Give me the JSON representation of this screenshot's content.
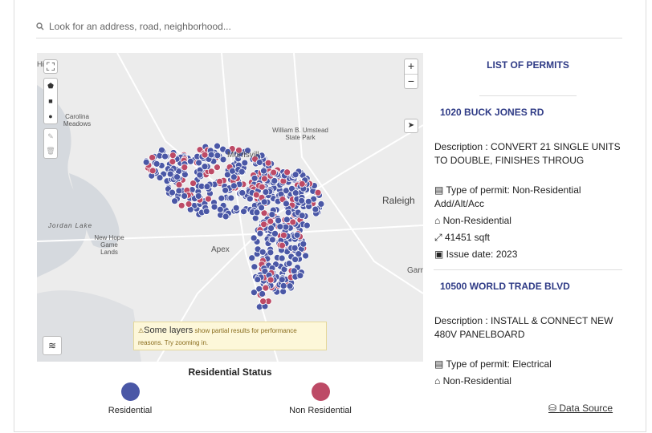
{
  "search": {
    "placeholder": "Look for an address, road, neighborhood..."
  },
  "map": {
    "labels": [
      "Hill",
      "Carolina Meadows",
      "William B. Umstead State Park",
      "Morrisvill",
      "Raleigh",
      "Jordan Lake",
      "New Hope Game Lands",
      "Apex",
      "Garn"
    ],
    "zoom_in": "+",
    "zoom_out": "−",
    "warning": {
      "title": "Some layers",
      "text": "show partial results for performance reasons. Try zooming in."
    }
  },
  "legend": {
    "title": "Residential Status",
    "items": [
      "Residential",
      "Non Residential"
    ]
  },
  "permits": {
    "title": "LIST OF PERMITS",
    "items": [
      {
        "address": "1020 BUCK JONES RD",
        "description": "Description : CONVERT 21 SINGLE UNITS TO DOUBLE, FINISHES THROUG",
        "type": "Type of permit: Non-Residential Add/Alt/Acc",
        "category": "Non-Residential",
        "area": "41451 sqft",
        "issue": "Issue date: 2023"
      },
      {
        "address": "10500 WORLD TRADE BLVD",
        "description": "Description : INSTALL & CONNECT NEW 480V PANELBOARD",
        "type": "Type of permit: Electrical",
        "category": "Non-Residential"
      }
    ]
  },
  "data_source": "Data Source"
}
